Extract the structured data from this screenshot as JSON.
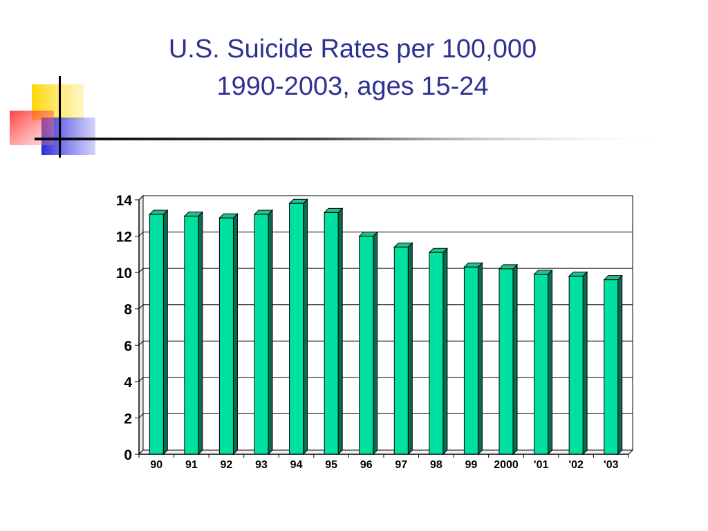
{
  "title": {
    "line1": "U.S. Suicide Rates per 100,000",
    "line2": "1990-2003, ages 15-24"
  },
  "colors": {
    "title": "#2E3192",
    "bar_front": "#00E0A0",
    "bar_top": "#22C08A",
    "bar_side": "#0A6B4E",
    "accent_yellow": "#FFD700",
    "accent_red": "#FF3B3B",
    "accent_blue": "#2A2AD8"
  },
  "chart_data": {
    "type": "bar",
    "categories": [
      "90",
      "91",
      "92",
      "93",
      "94",
      "95",
      "96",
      "97",
      "98",
      "99",
      "2000",
      "'01",
      "'02",
      "'03"
    ],
    "values": [
      13.2,
      13.1,
      13.0,
      13.2,
      13.8,
      13.3,
      12.0,
      11.4,
      11.1,
      10.3,
      10.2,
      9.9,
      9.8,
      9.6
    ],
    "yticks": [
      "0",
      "2",
      "4",
      "6",
      "8",
      "10",
      "12",
      "14"
    ],
    "ylim": [
      0,
      14
    ],
    "grid": true,
    "legend": "none",
    "title": "",
    "xlabel": "",
    "ylabel": ""
  }
}
